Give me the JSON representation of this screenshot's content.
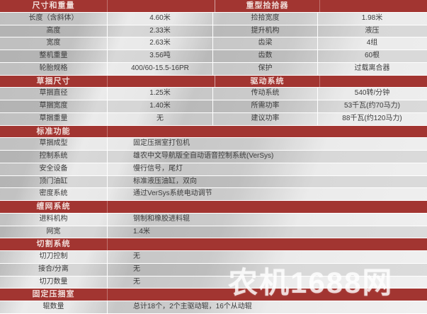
{
  "colors": {
    "header_red": "#a23531",
    "header_text": "#f0dbd7",
    "row_text": "#3c3c3c"
  },
  "watermark": "农机1688网",
  "top": {
    "left": {
      "header": "尺寸和重量",
      "rows": [
        {
          "label": "长度（含斜体）",
          "value": "4.60米"
        },
        {
          "label": "高度",
          "value": "2.33米"
        },
        {
          "label": "宽度",
          "value": "2.63米"
        },
        {
          "label": "整机重量",
          "value": "3.56吨"
        },
        {
          "label": "轮胎规格",
          "value": "400/60-15.5-16PR"
        }
      ]
    },
    "right": {
      "header": "重型捡拾器",
      "rows": [
        {
          "label": "捡拾宽度",
          "value": "1.98米"
        },
        {
          "label": "提升机构",
          "value": "液压"
        },
        {
          "label": "齿梁",
          "value": "4组"
        },
        {
          "label": "齿数",
          "value": "60根"
        },
        {
          "label": "保护",
          "value": "过载离合器"
        }
      ]
    },
    "left2": {
      "header": "草捆尺寸",
      "rows": [
        {
          "label": "草捆直径",
          "value": "1.25米"
        },
        {
          "label": "草捆宽度",
          "value": "1.40米"
        },
        {
          "label": "草捆重量",
          "value": "无"
        }
      ]
    },
    "right2": {
      "header": "驱动系统",
      "rows": [
        {
          "label": "传动系统",
          "value": "540转/分钟"
        },
        {
          "label": "所需功率",
          "value": "53千瓦(约70马力)"
        },
        {
          "label": "建议功率",
          "value": "88千瓦(约120马力)"
        }
      ]
    }
  },
  "sections": [
    {
      "header": "标准功能",
      "rows": [
        {
          "label": "草捆成型",
          "value": "固定压捆室打包机"
        },
        {
          "label": "控制系统",
          "value": "雄农中文导航版全自动语音控制系统(VerSys)"
        },
        {
          "label": "安全设备",
          "value": "慢行信号，尾灯"
        },
        {
          "label": "顶门油缸",
          "value": "标准液压油缸，双向"
        },
        {
          "label": "密度系统",
          "value": "通过VerSys系统电动调节"
        }
      ]
    },
    {
      "header": "缠网系统",
      "rows": [
        {
          "label": "进料机构",
          "value": "钢制和橡胶进料辊"
        },
        {
          "label": "网宽",
          "value": "1.4米"
        }
      ]
    },
    {
      "header": "切割系统",
      "rows": [
        {
          "label": "切刀控制",
          "value": "无"
        },
        {
          "label": "接合/分离",
          "value": "无"
        },
        {
          "label": "切刀数量",
          "value": "无"
        }
      ]
    },
    {
      "header": "固定压捆室",
      "rows": [
        {
          "label": "辊数量",
          "value": "总计18个，2个主驱动辊，16个从动辊"
        }
      ]
    }
  ]
}
